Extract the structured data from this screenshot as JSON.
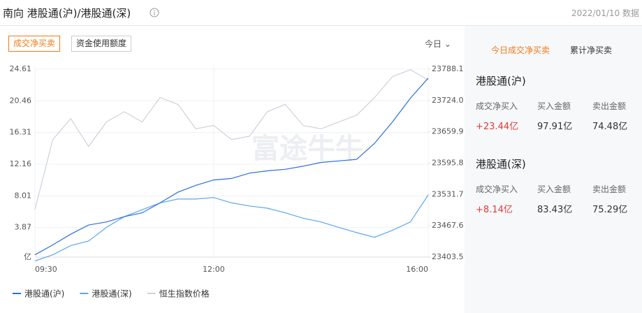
{
  "header": {
    "title": "南向 港股通(沪)/港股通(深)",
    "date": "2022/01/10 数据"
  },
  "tabs": [
    "成交净买卖",
    "资金使用额度"
  ],
  "period": "今日",
  "watermark": "富途牛牛",
  "chart_data": {
    "type": "line",
    "x": [
      "09:30",
      "09:45",
      "10:00",
      "10:15",
      "10:30",
      "10:45",
      "11:00",
      "11:15",
      "11:30",
      "11:45",
      "12:00",
      "13:15",
      "13:30",
      "13:45",
      "14:00",
      "14:15",
      "14:30",
      "14:45",
      "15:00",
      "15:15",
      "15:30",
      "15:45",
      "16:00"
    ],
    "xticks": [
      "09:30",
      "12:00",
      "16:00"
    ],
    "series": [
      {
        "name": "港股通(沪)",
        "color": "#2a6fdb",
        "values": [
          0.3,
          1.6,
          3.0,
          4.2,
          4.6,
          5.3,
          5.8,
          7.1,
          8.5,
          9.4,
          10.1,
          10.3,
          11.0,
          11.3,
          11.5,
          11.9,
          12.4,
          12.6,
          12.8,
          14.9,
          17.7,
          20.8,
          23.44
        ]
      },
      {
        "name": "港股通(深)",
        "color": "#5aa7ee",
        "values": [
          -0.5,
          0.3,
          1.5,
          2.1,
          3.9,
          5.3,
          6.2,
          7.1,
          7.6,
          7.6,
          7.8,
          7.1,
          6.7,
          6.4,
          5.8,
          5.1,
          4.6,
          3.9,
          3.2,
          2.6,
          3.5,
          4.6,
          8.14
        ]
      },
      {
        "name": "恒生指数价格",
        "color": "#cdd2da",
        "axis": "y2",
        "values": [
          23501,
          23644,
          23687,
          23630,
          23680,
          23701,
          23680,
          23730,
          23716,
          23666,
          23673,
          23644,
          23651,
          23701,
          23716,
          23673,
          23666,
          23680,
          23694,
          23730,
          23773,
          23787,
          23766
        ]
      }
    ],
    "ylim": [
      0,
      24.61
    ],
    "yticks": [
      {
        "value": 0,
        "label": "亿"
      },
      3.87,
      8.01,
      12.16,
      16.31,
      20.46,
      24.61
    ],
    "y2lim": [
      23403.5,
      23788.1
    ],
    "y2ticks": [
      23403.5,
      23467.6,
      23531.7,
      23595.8,
      23659.9,
      {
        "value": 23724,
        "label": "23724.0"
      },
      23788.1
    ],
    "grid": true,
    "legend": "bottom"
  },
  "side_tabs": [
    "今日成交净买卖",
    "累计净买卖"
  ],
  "panels": [
    {
      "title": "港股通(沪)",
      "columns": [
        "成交净买入",
        "买入金额",
        "卖出金额"
      ],
      "values": [
        "+23.44亿",
        "97.91亿",
        "74.48亿"
      ]
    },
    {
      "title": "港股通(深)",
      "columns": [
        "成交净买入",
        "买入金额",
        "卖出金额"
      ],
      "values": [
        "+8.14亿",
        "83.43亿",
        "75.29亿"
      ]
    }
  ]
}
